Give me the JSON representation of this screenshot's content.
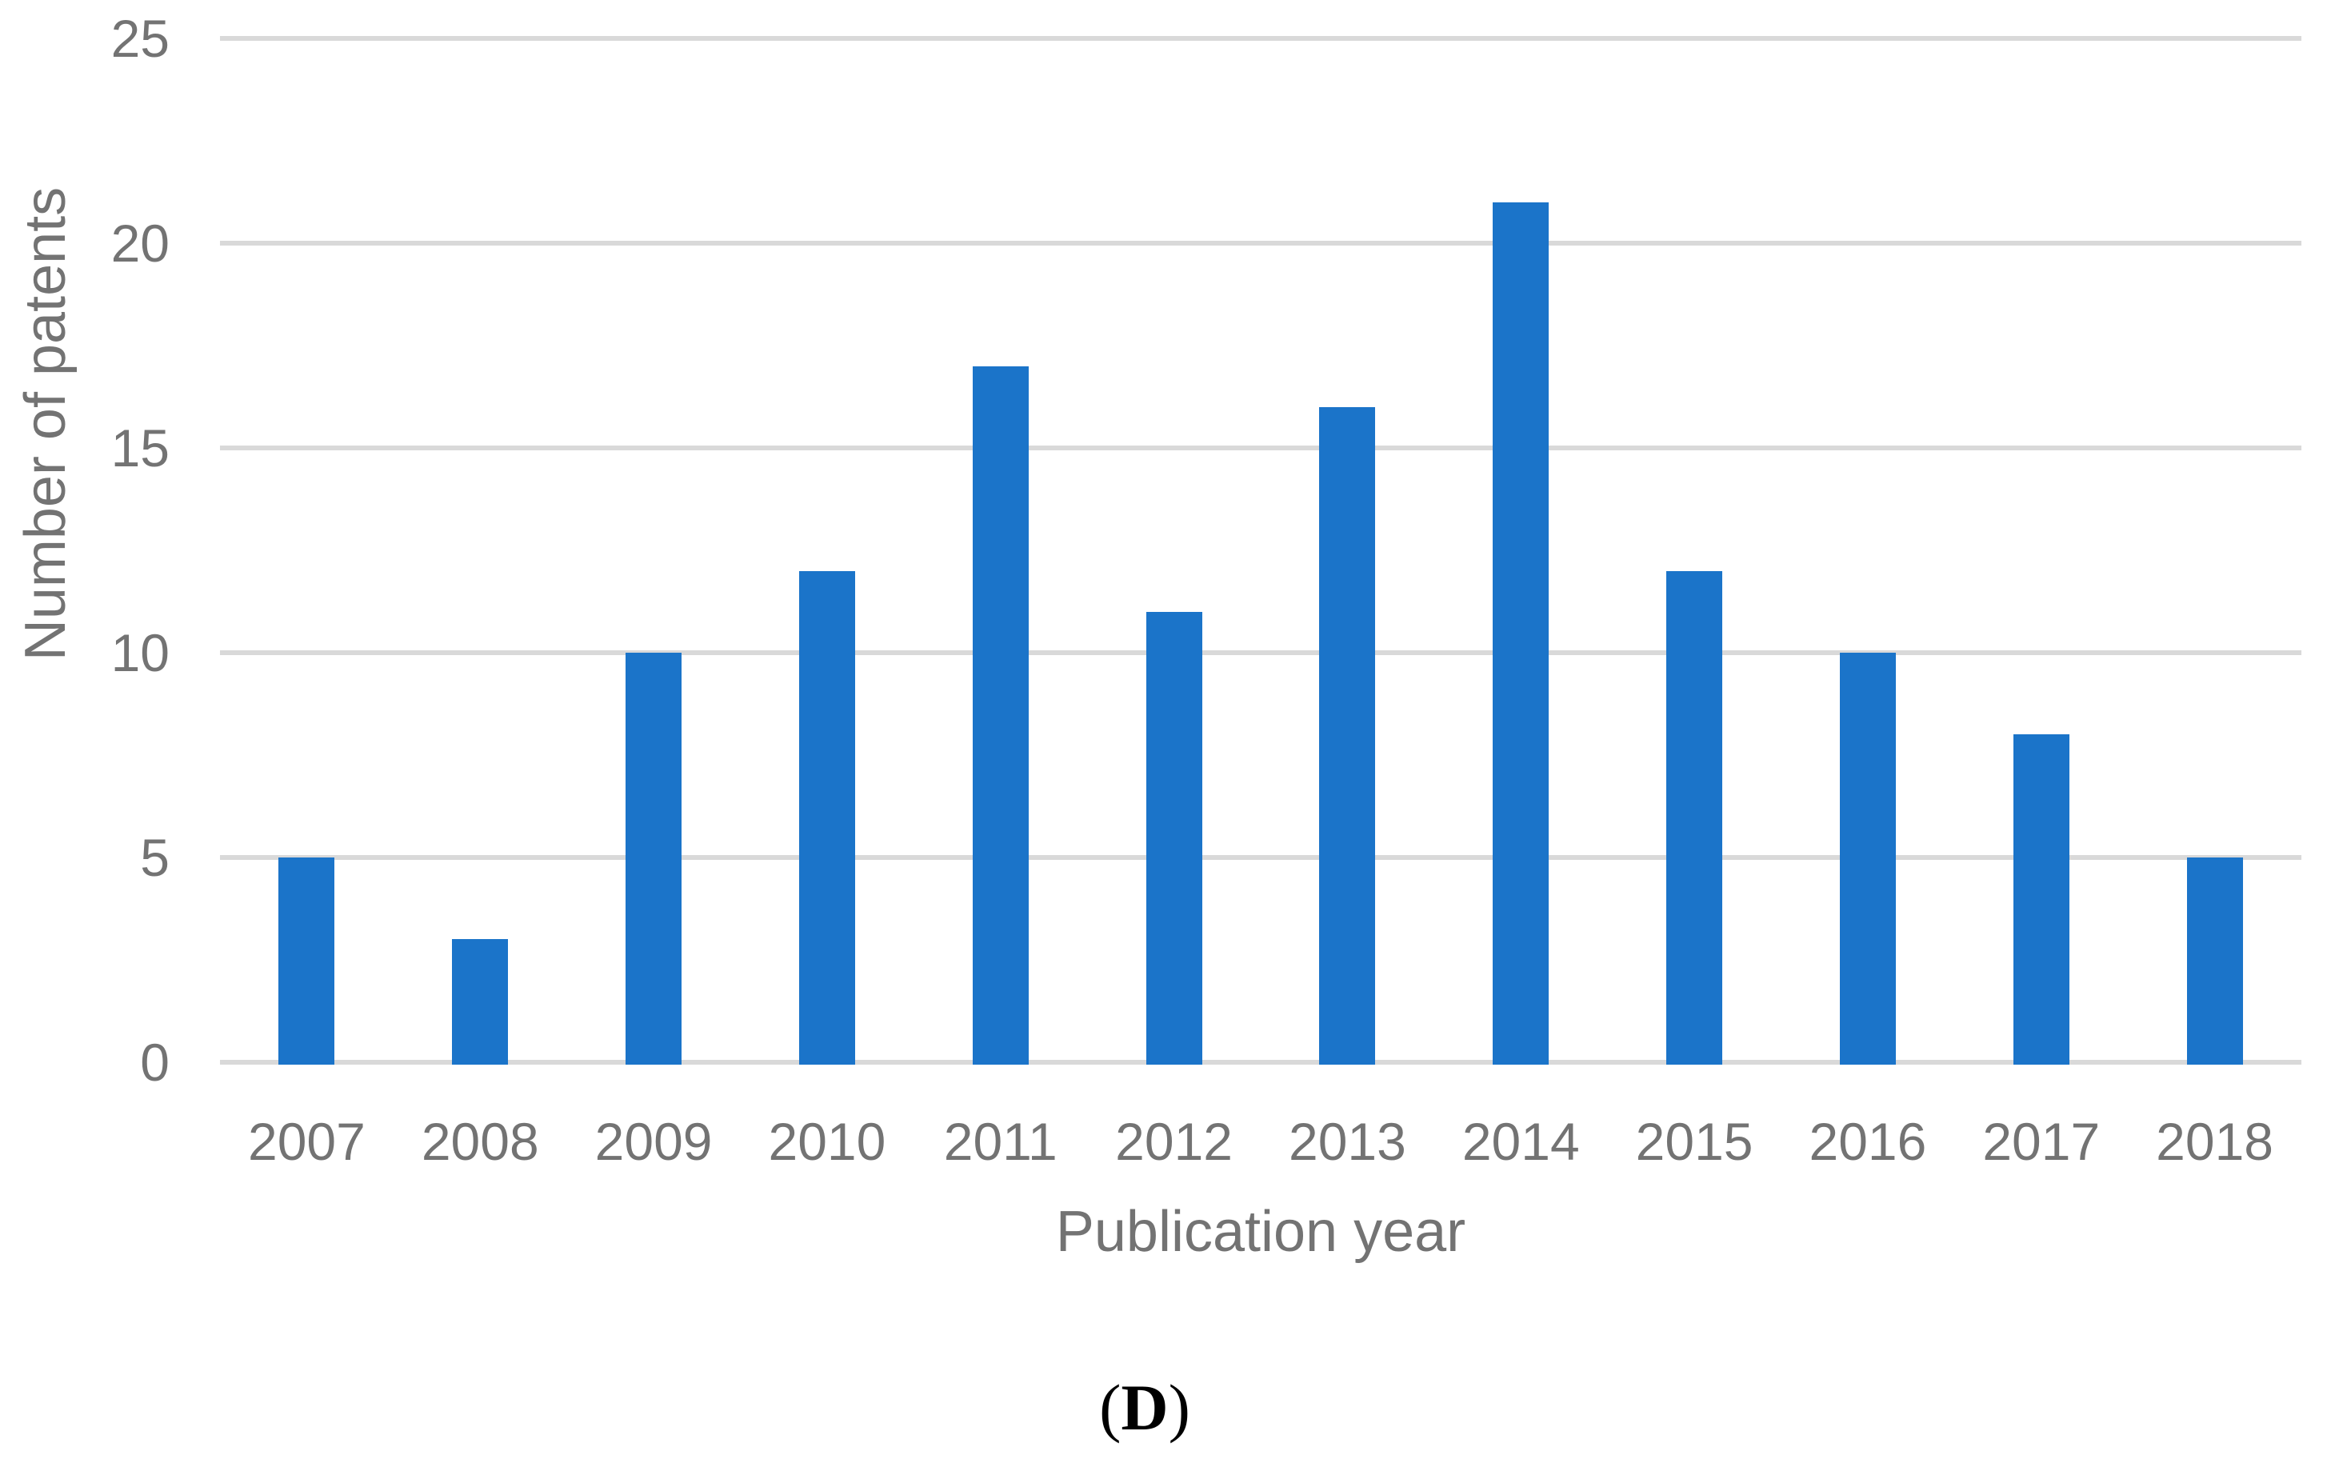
{
  "chart_data": {
    "type": "bar",
    "title": "",
    "categories": [
      "2007",
      "2008",
      "2009",
      "2010",
      "2011",
      "2012",
      "2013",
      "2014",
      "2015",
      "2016",
      "2017",
      "2018"
    ],
    "values": [
      5,
      3,
      10,
      12,
      17,
      11,
      16,
      21,
      12,
      10,
      8,
      5
    ],
    "xlabel": "Publication year",
    "ylabel": "Number of patents",
    "ylim": [
      0,
      25
    ],
    "yticks": [
      0,
      5,
      10,
      15,
      20,
      25
    ],
    "grid": "horizontal",
    "legend": "none",
    "bar_color": "#1B74C9",
    "gridline_color": "#D9D9D9",
    "axis_text_color": "#737373"
  },
  "caption": {
    "open_paren": "(",
    "letter": "D",
    "close_paren": ")"
  }
}
